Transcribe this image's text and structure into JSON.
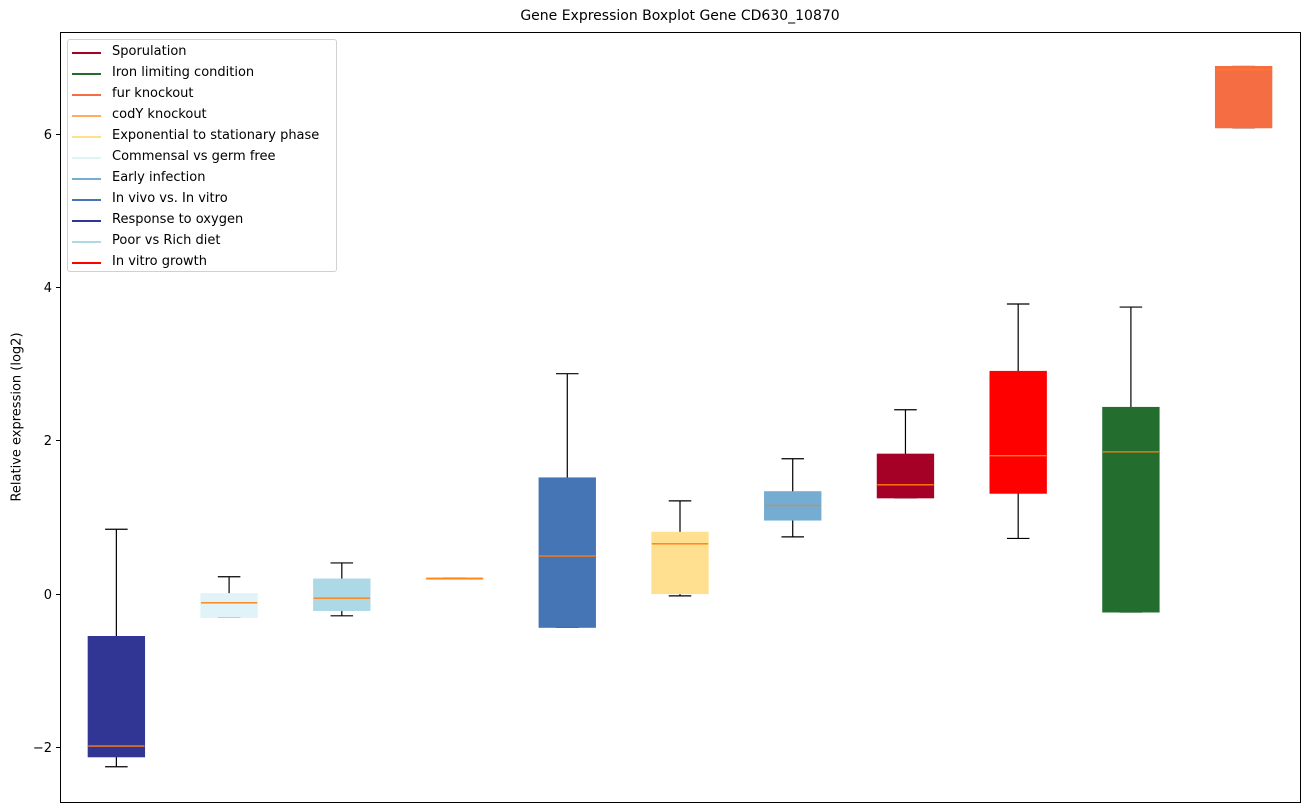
{
  "chart_data": {
    "type": "boxplot",
    "title": "Gene Expression Boxplot Gene CD630_10870",
    "xlabel": "",
    "ylabel": "Relative expression (log2)",
    "ylim": [
      -2.72,
      7.33
    ],
    "yticks": [
      -2,
      0,
      2,
      4,
      6
    ],
    "ytick_labels": [
      "−2",
      "0",
      "2",
      "4",
      "6"
    ],
    "grid": false,
    "legend_position": "top-left",
    "median_color": "#ff7f0e",
    "series": [
      {
        "name": "Response to oxygen",
        "color": "#313695",
        "position": 1,
        "whisker_low": -2.26,
        "q1": -2.13,
        "median": -1.99,
        "q3": -0.56,
        "whisker_high": 0.84
      },
      {
        "name": "Commensal vs germ free",
        "color": "#e0f3f8",
        "position": 2,
        "whisker_low": -0.31,
        "q1": -0.31,
        "median": -0.12,
        "q3": 0.0,
        "whisker_high": 0.22
      },
      {
        "name": "Poor vs Rich diet",
        "color": "#add8e6",
        "position": 3,
        "whisker_low": -0.29,
        "q1": -0.22,
        "median": -0.06,
        "q3": 0.19,
        "whisker_high": 0.4
      },
      {
        "name": "codY knockout",
        "color": "#fdae61",
        "position": 4,
        "whisker_low": 0.2,
        "q1": 0.2,
        "median": 0.2,
        "q3": 0.2,
        "whisker_high": 0.2
      },
      {
        "name": "In vivo vs. In vitro",
        "color": "#4575b4",
        "position": 5,
        "whisker_low": -0.44,
        "q1": -0.44,
        "median": 0.49,
        "q3": 1.51,
        "whisker_high": 2.87
      },
      {
        "name": "Exponential to stationary phase",
        "color": "#fee090",
        "position": 6,
        "whisker_low": -0.03,
        "q1": 0.0,
        "median": 0.65,
        "q3": 0.8,
        "whisker_high": 1.21
      },
      {
        "name": "Early infection",
        "color": "#74add1",
        "position": 7,
        "whisker_low": 0.74,
        "q1": 0.96,
        "median": 1.15,
        "q3": 1.33,
        "whisker_high": 1.76
      },
      {
        "name": "Sporulation",
        "color": "#a50026",
        "position": 8,
        "whisker_low": 1.25,
        "q1": 1.25,
        "median": 1.42,
        "q3": 1.82,
        "whisker_high": 2.4
      },
      {
        "name": "In vitro growth",
        "color": "#ff0000",
        "position": 9,
        "whisker_low": 0.72,
        "q1": 1.31,
        "median": 1.8,
        "q3": 2.9,
        "whisker_high": 3.78
      },
      {
        "name": "Iron limiting condition",
        "color": "#236e2f",
        "position": 10,
        "whisker_low": -0.24,
        "q1": -0.24,
        "median": 1.85,
        "q3": 2.43,
        "whisker_high": 3.74
      },
      {
        "name": "fur knockout",
        "color": "#f46d43",
        "position": 11,
        "whisker_low": 6.08,
        "q1": 6.08,
        "median": 6.84,
        "q3": 6.88,
        "whisker_high": 6.88
      }
    ],
    "legend": [
      {
        "label": "Sporulation",
        "color": "#a50026"
      },
      {
        "label": "Iron limiting condition",
        "color": "#236e2f"
      },
      {
        "label": "fur knockout",
        "color": "#f46d43"
      },
      {
        "label": "codY knockout",
        "color": "#fdae61"
      },
      {
        "label": "Exponential to stationary phase",
        "color": "#fee090"
      },
      {
        "label": "Commensal vs germ free",
        "color": "#e0f3f8"
      },
      {
        "label": "Early infection",
        "color": "#74add1"
      },
      {
        "label": "In vivo vs. In vitro",
        "color": "#4575b4"
      },
      {
        "label": "Response to oxygen",
        "color": "#313695"
      },
      {
        "label": "Poor vs Rich diet",
        "color": "#add8e6"
      },
      {
        "label": "In vitro growth",
        "color": "#ff0000"
      }
    ]
  }
}
